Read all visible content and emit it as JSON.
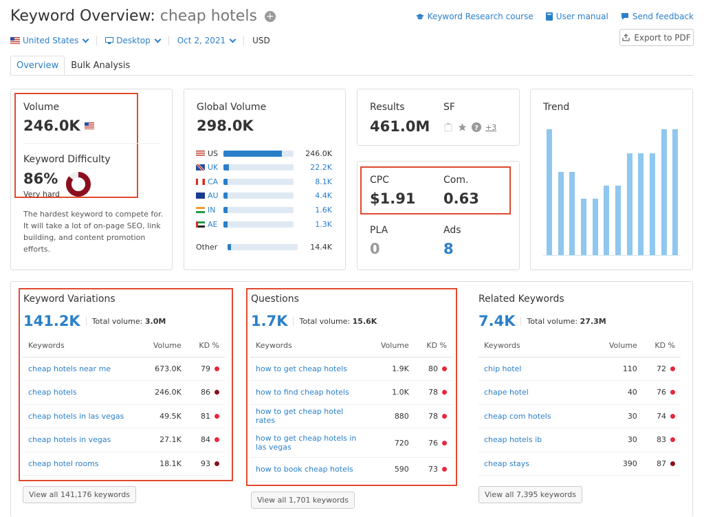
{
  "header": {
    "title_prefix": "Keyword Overview:",
    "keyword": "cheap hotels",
    "links": [
      "Keyword Research course",
      "User manual",
      "Send feedback"
    ],
    "export_label": "Export to PDF"
  },
  "filters": {
    "country": "United States",
    "device": "Desktop",
    "date": "Oct 2, 2021",
    "currency": "USD"
  },
  "tabs": [
    "Overview",
    "Bulk Analysis"
  ],
  "volume_card": {
    "volume_label": "Volume",
    "volume_value": "246.0K",
    "kd_label": "Keyword Difficulty",
    "kd_value": "86%",
    "kd_percent": 86,
    "kd_text": "Very hard",
    "description": "The hardest keyword to compete for. It will take a lot of on-page SEO, link building, and content promotion efforts."
  },
  "global_volume": {
    "label": "Global Volume",
    "value": "298.0K",
    "rows": [
      {
        "code": "US",
        "value": "246.0K",
        "fraction": 0.83
      },
      {
        "code": "UK",
        "value": "22.2K",
        "fraction": 0.08
      },
      {
        "code": "CA",
        "value": "8.1K",
        "fraction": 0.03
      },
      {
        "code": "AU",
        "value": "4.4K",
        "fraction": 0.02
      },
      {
        "code": "IN",
        "value": "1.6K",
        "fraction": 0.01
      },
      {
        "code": "AE",
        "value": "1.3K",
        "fraction": 0.01
      }
    ],
    "other_label": "Other",
    "other_value": "14.4K",
    "other_fraction": 0.05
  },
  "results_card": {
    "results_label": "Results",
    "results_value": "461.0M",
    "sf_label": "SF",
    "sf_more": "+3"
  },
  "cpc_card": {
    "cpc_label": "CPC",
    "cpc_value": "$1.91",
    "com_label": "Com.",
    "com_value": "0.63",
    "pla_label": "PLA",
    "pla_value": "0",
    "ads_label": "Ads",
    "ads_value": "8"
  },
  "trend": {
    "label": "Trend",
    "values": [
      1.0,
      0.66,
      0.66,
      0.45,
      0.45,
      0.55,
      0.55,
      0.81,
      0.81,
      0.81,
      1.0,
      1.0
    ]
  },
  "variations": {
    "title": "Keyword Variations",
    "count": "141.2K",
    "total_label": "Total volume:",
    "total_value": "3.0M",
    "columns": [
      "Keywords",
      "Volume",
      "KD %"
    ],
    "rows": [
      {
        "kw": "cheap hotels near me",
        "vol": "673.0K",
        "kd": "79",
        "color": "#e8273a"
      },
      {
        "kw": "cheap hotels",
        "vol": "246.0K",
        "kd": "86",
        "color": "#8b0f1f"
      },
      {
        "kw": "cheap hotels in las vegas",
        "vol": "49.5K",
        "kd": "81",
        "color": "#e8273a"
      },
      {
        "kw": "cheap hotels in vegas",
        "vol": "27.1K",
        "kd": "84",
        "color": "#e8273a"
      },
      {
        "kw": "cheap hotel rooms",
        "vol": "18.1K",
        "kd": "93",
        "color": "#8b0f1f"
      }
    ],
    "button": "View all 141,176 keywords"
  },
  "questions": {
    "title": "Questions",
    "count": "1.7K",
    "total_label": "Total volume:",
    "total_value": "15.6K",
    "columns": [
      "Keywords",
      "Volume",
      "KD %"
    ],
    "rows": [
      {
        "kw": "how to get cheap hotels",
        "vol": "1.9K",
        "kd": "80",
        "color": "#e8273a"
      },
      {
        "kw": "how to find cheap hotels",
        "vol": "1.0K",
        "kd": "78",
        "color": "#e8273a"
      },
      {
        "kw": "how to get cheap hotel rates",
        "vol": "880",
        "kd": "78",
        "color": "#e8273a"
      },
      {
        "kw": "how to get cheap hotels in las vegas",
        "vol": "720",
        "kd": "76",
        "color": "#e8273a"
      },
      {
        "kw": "how to book cheap hotels",
        "vol": "590",
        "kd": "73",
        "color": "#e8273a"
      }
    ],
    "button": "View all 1,701 keywords"
  },
  "related": {
    "title": "Related Keywords",
    "count": "7.4K",
    "total_label": "Total volume:",
    "total_value": "27.3M",
    "columns": [
      "Keywords",
      "Volume",
      "KD %"
    ],
    "rows": [
      {
        "kw": "chip hotel",
        "vol": "110",
        "kd": "72",
        "color": "#e8273a"
      },
      {
        "kw": "chape hotel",
        "vol": "40",
        "kd": "76",
        "color": "#e8273a"
      },
      {
        "kw": "cheap com hotels",
        "vol": "30",
        "kd": "74",
        "color": "#e8273a"
      },
      {
        "kw": "cheap hotels ib",
        "vol": "30",
        "kd": "83",
        "color": "#e8273a"
      },
      {
        "kw": "cheap stays",
        "vol": "390",
        "kd": "87",
        "color": "#8b0f1f"
      }
    ],
    "button": "View all 7,395 keywords"
  },
  "colors": {
    "accent": "#2a7fc9",
    "highlight_border": "#e0492d",
    "trend_bar": "#8fc7ee",
    "kd_ring": "#8b0f1f"
  }
}
